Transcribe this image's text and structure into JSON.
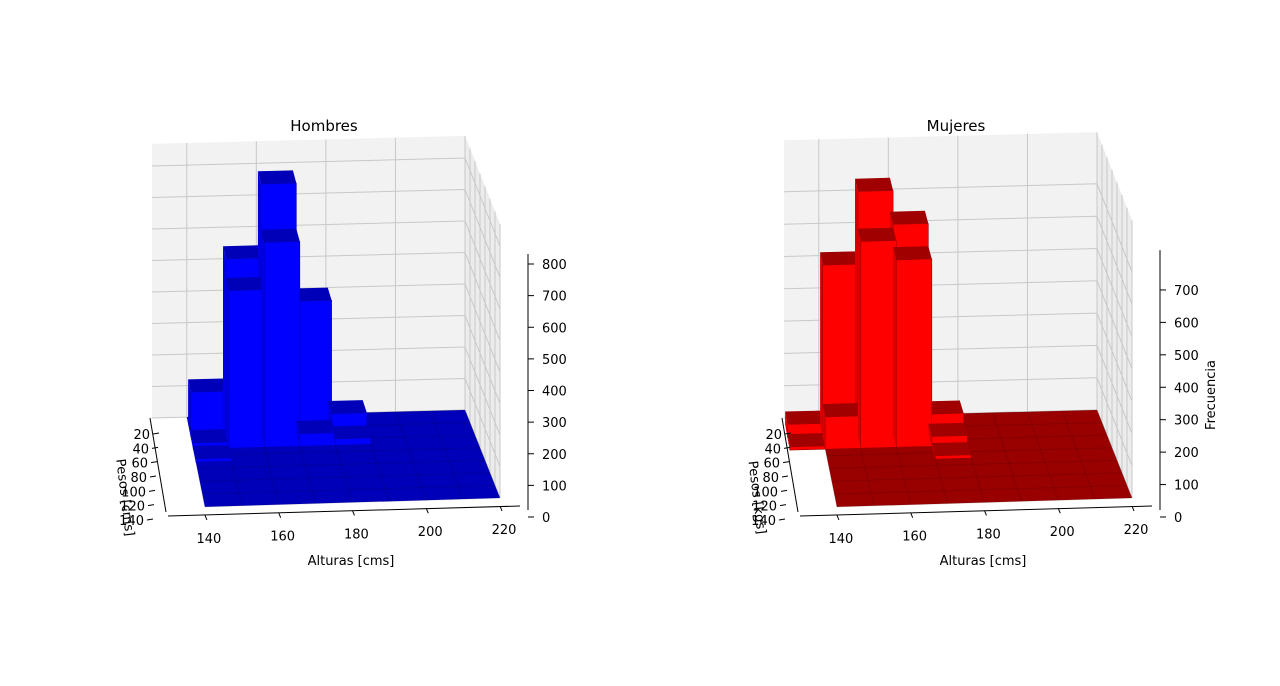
{
  "chart_data": [
    {
      "type": "bar3d",
      "title": "Hombres",
      "xlabel": "Alturas [cms]",
      "ylabel": "Pesos [cms]",
      "zlabel": "",
      "x_ticks": [
        "140",
        "160",
        "180",
        "200",
        "220"
      ],
      "y_ticks": [
        "20",
        "40",
        "60",
        "80",
        "100",
        "120",
        "140"
      ],
      "z_ticks": [
        "0",
        "100",
        "200",
        "300",
        "400",
        "500",
        "600",
        "700",
        "800"
      ],
      "zlim": [
        0,
        800
      ],
      "color": "#0000ff",
      "base_color": "#0000b8",
      "bars": [
        {
          "x": 150,
          "y": 30,
          "z": 140
        },
        {
          "x": 150,
          "y": 50,
          "z": 20
        },
        {
          "x": 150,
          "y": 70,
          "z": 10
        },
        {
          "x": 160,
          "y": 30,
          "z": 560
        },
        {
          "x": 160,
          "y": 50,
          "z": 500
        },
        {
          "x": 170,
          "y": 30,
          "z": 795
        },
        {
          "x": 170,
          "y": 50,
          "z": 650
        },
        {
          "x": 180,
          "y": 30,
          "z": 420
        },
        {
          "x": 180,
          "y": 50,
          "z": 40
        },
        {
          "x": 190,
          "y": 30,
          "z": 60
        },
        {
          "x": 190,
          "y": 50,
          "z": 20
        }
      ]
    },
    {
      "type": "bar3d",
      "title": "Mujeres",
      "xlabel": "Alturas [cms]",
      "ylabel": "Pesos [kgs]",
      "zlabel": "Frecuencia",
      "x_ticks": [
        "140",
        "160",
        "180",
        "200",
        "220"
      ],
      "y_ticks": [
        "20",
        "40",
        "60",
        "80",
        "100",
        "120",
        "140"
      ],
      "z_ticks": [
        "0",
        "100",
        "200",
        "300",
        "400",
        "500",
        "600",
        "700"
      ],
      "zlim": [
        0,
        780
      ],
      "color": "#ff0000",
      "base_color": "#990000",
      "bars": [
        {
          "x": 140,
          "y": 30,
          "z": 40
        },
        {
          "x": 140,
          "y": 50,
          "z": 10
        },
        {
          "x": 150,
          "y": 30,
          "z": 530
        },
        {
          "x": 150,
          "y": 50,
          "z": 100
        },
        {
          "x": 160,
          "y": 30,
          "z": 755
        },
        {
          "x": 160,
          "y": 50,
          "z": 640
        },
        {
          "x": 170,
          "y": 30,
          "z": 650
        },
        {
          "x": 170,
          "y": 50,
          "z": 580
        },
        {
          "x": 180,
          "y": 30,
          "z": 60
        },
        {
          "x": 180,
          "y": 50,
          "z": 30
        },
        {
          "x": 180,
          "y": 70,
          "z": 10
        }
      ]
    }
  ]
}
